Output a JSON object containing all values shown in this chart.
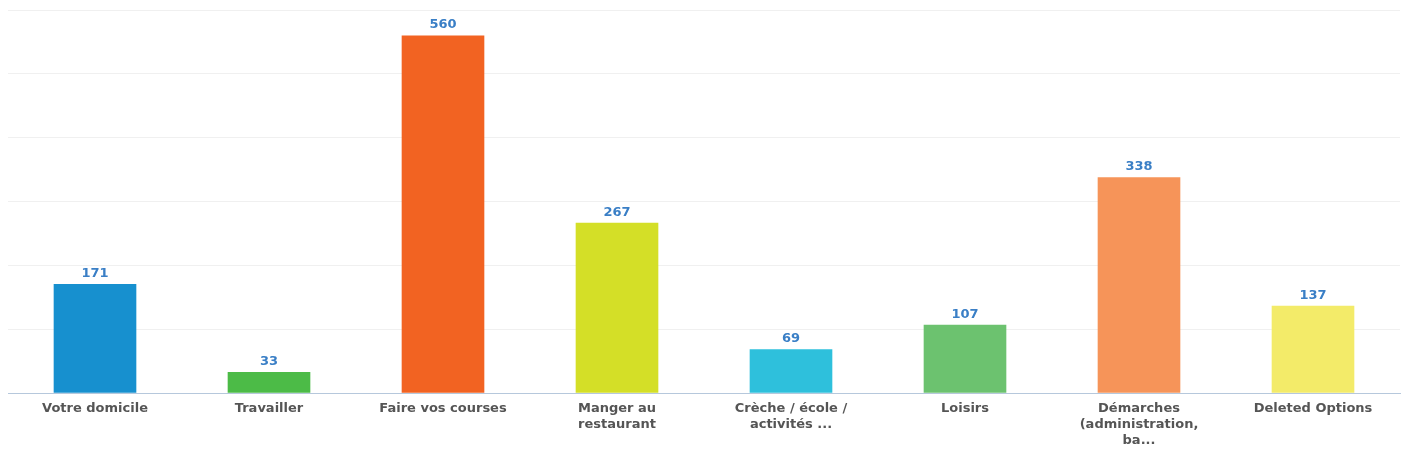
{
  "chart_data": {
    "type": "bar",
    "categories": [
      "Votre domicile",
      "Travailler",
      "Faire vos courses",
      "Manger au restaurant",
      "Crèche / école / activités ...",
      "Loisirs",
      "Démarches (administration, ba...",
      "Deleted Options"
    ],
    "values": [
      171,
      33,
      560,
      267,
      69,
      107,
      338,
      137
    ],
    "colors": [
      "#1790cf",
      "#4cbb47",
      "#f26322",
      "#d4df27",
      "#2ec0dc",
      "#6cc26f",
      "#f69459",
      "#f3eb69"
    ],
    "ylim": [
      0,
      600
    ],
    "yticks": [
      {
        "value": 0,
        "label": null
      },
      {
        "value": 100,
        "label": null
      },
      {
        "value": 200,
        "label": null
      },
      {
        "value": 300,
        "label": null
      },
      {
        "value": 400,
        "label": null
      },
      {
        "value": 500,
        "label": null
      },
      {
        "value": 600,
        "label": null
      }
    ],
    "tick_labels": "x",
    "grid": "y",
    "data_labels": true
  }
}
